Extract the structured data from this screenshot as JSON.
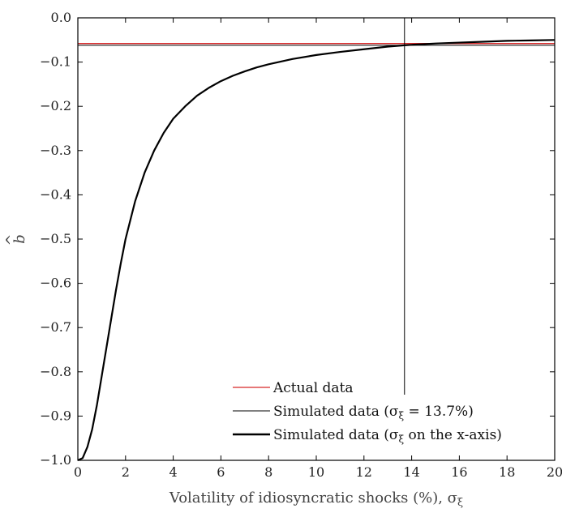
{
  "chart_data": {
    "type": "line",
    "xlabel": "Volatility of idiosyncratic shocks (%), σ",
    "xlabel_subscript": "ξ",
    "ylabel": "b",
    "ylabel_accent": "^",
    "xlim": [
      0,
      20
    ],
    "ylim": [
      -1.0,
      0.0
    ],
    "xticks": [
      0,
      2,
      4,
      6,
      8,
      10,
      12,
      14,
      16,
      18,
      20
    ],
    "yticks": [
      0.0,
      -0.1,
      -0.2,
      -0.3,
      -0.4,
      -0.5,
      -0.6,
      -0.7,
      -0.8,
      -0.9,
      -1.0
    ],
    "xtick_labels": [
      "0",
      "2",
      "4",
      "6",
      "8",
      "10",
      "12",
      "14",
      "16",
      "18",
      "20"
    ],
    "ytick_labels": [
      "0.0",
      "−0.1",
      "−0.2",
      "−0.3",
      "−0.4",
      "−0.5",
      "−0.6",
      "−0.7",
      "−0.8",
      "−0.9",
      "−1.0"
    ],
    "grid": false,
    "legend_position": "bottom-right",
    "series": [
      {
        "name": "Actual data",
        "kind": "hline",
        "color": "#d62728",
        "y": -0.058
      },
      {
        "name": "Simulated data (σξ = 13.7%)",
        "legend_text": "Simulated data (σ",
        "legend_sub": "ξ",
        "legend_tail": " = 13.7%)",
        "kind": "hline+vline",
        "color": "#000000",
        "y": -0.062,
        "x": 13.7
      },
      {
        "name": "Simulated data (σξ on the x-axis)",
        "legend_text": "Simulated data (σ",
        "legend_sub": "ξ",
        "legend_tail": " on the x-axis)",
        "kind": "curve",
        "color": "#000000",
        "x": [
          0,
          0.2,
          0.4,
          0.6,
          0.8,
          1.0,
          1.2,
          1.4,
          1.6,
          1.8,
          2.0,
          2.4,
          2.8,
          3.2,
          3.6,
          4.0,
          4.5,
          5.0,
          5.5,
          6.0,
          6.5,
          7.0,
          7.5,
          8.0,
          9.0,
          10.0,
          11.0,
          12.0,
          13.0,
          13.7,
          14.0,
          15.0,
          16.0,
          17.0,
          18.0,
          19.0,
          20.0
        ],
        "y": [
          -1.0,
          -0.995,
          -0.97,
          -0.93,
          -0.875,
          -0.81,
          -0.745,
          -0.68,
          -0.615,
          -0.555,
          -0.5,
          -0.415,
          -0.35,
          -0.3,
          -0.26,
          -0.228,
          -0.2,
          -0.176,
          -0.158,
          -0.143,
          -0.131,
          -0.121,
          -0.112,
          -0.105,
          -0.093,
          -0.084,
          -0.077,
          -0.071,
          -0.065,
          -0.062,
          -0.061,
          -0.058,
          -0.056,
          -0.054,
          -0.052,
          -0.051,
          -0.05
        ]
      }
    ]
  }
}
